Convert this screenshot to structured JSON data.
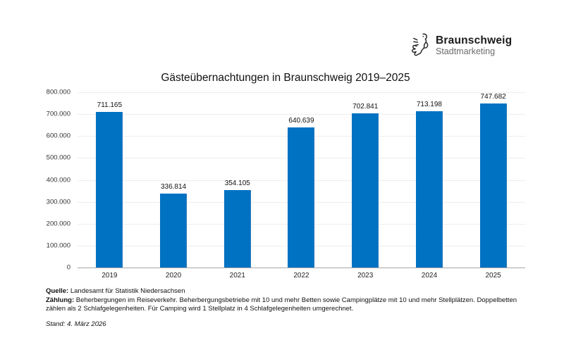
{
  "logo": {
    "name": "Braunschweig",
    "subtitle": "Stadtmarketing",
    "icon": "braunschweig-lion-icon"
  },
  "chart_data": {
    "type": "bar",
    "title": "Gästeübernachtungen in Braunschweig 2019–2025",
    "categories": [
      "2019",
      "2020",
      "2021",
      "2022",
      "2023",
      "2024",
      "2025"
    ],
    "values": [
      711165,
      336814,
      354105,
      640639,
      702841,
      713198,
      747682
    ],
    "value_labels": [
      "711.165",
      "336.814",
      "354.105",
      "640.639",
      "702.841",
      "713.198",
      "747.682"
    ],
    "xlabel": "",
    "ylabel": "",
    "ylim": [
      0,
      800000
    ],
    "ytick_step": 100000,
    "ytick_labels": [
      "0",
      "100.000",
      "200.000",
      "300.000",
      "400.000",
      "500.000",
      "600.000",
      "700.000",
      "800.000"
    ],
    "grid": true,
    "legend": false
  },
  "colors": {
    "bar": "#0072c2",
    "bar_edge": "#2277bd",
    "gridline": "#ededee",
    "axis": "#a8a8a8",
    "logo_subtitle": "#6b6b6b"
  },
  "footer": {
    "source_label": "Quelle:",
    "source_text": " Landesamt für Statistik Niedersachsen",
    "count_label": "Zählung:",
    "count_text": " Beherbergungen im Reiseverkehr. Beherbergungsbetriebe mit 10 und mehr Betten sowie Campingplätze mit 10 und mehr Stellplätzen. Doppelbetten zählen als 2 Schlafgelegenheiten. Für Camping wird 1 Stellplatz in 4 Schlafgelegenheiten umgerechnet.",
    "as_of": "Stand: 4. März 2026"
  }
}
